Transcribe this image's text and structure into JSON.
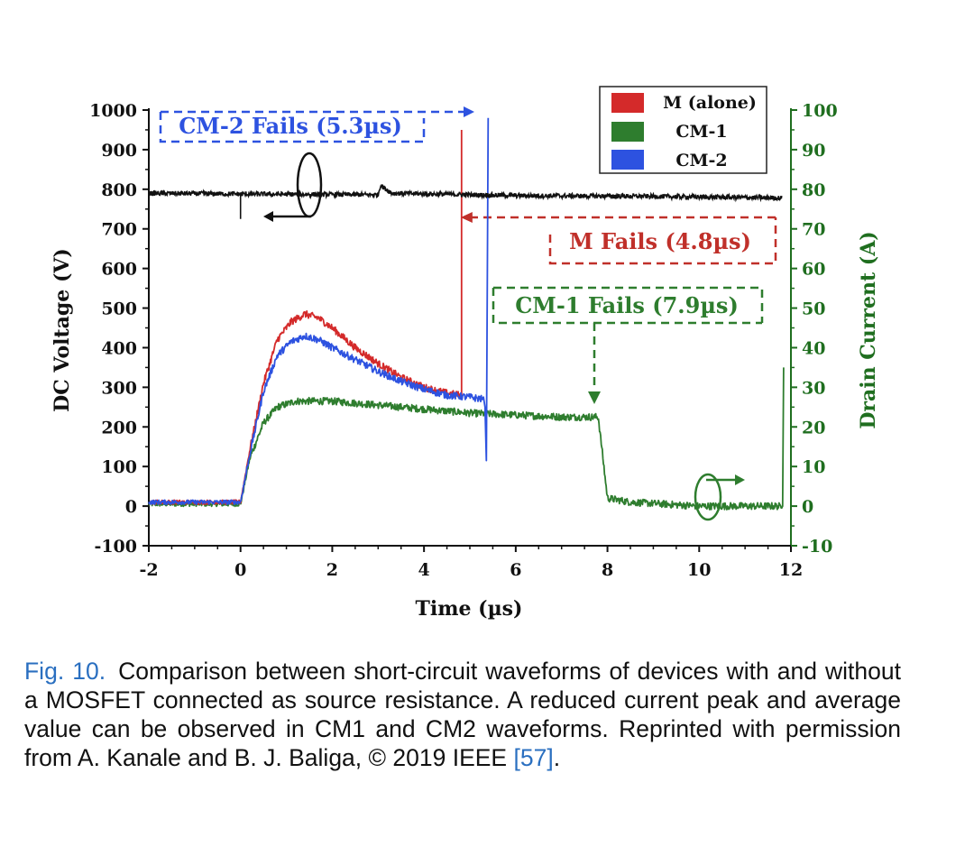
{
  "chart_data": {
    "type": "line",
    "xlabel": "Time (µs)",
    "ylabel_left": "DC Voltage (V)",
    "ylabel_right": "Drain Current (A)",
    "xlim": [
      -2,
      12
    ],
    "ylim_left": [
      -100,
      1000
    ],
    "ylim_right": [
      -10,
      100
    ],
    "x_ticks": [
      "-2",
      "0",
      "2",
      "4",
      "6",
      "8",
      "10",
      "12"
    ],
    "y_ticks_left": [
      "1000",
      "900",
      "800",
      "700",
      "600",
      "500",
      "400",
      "300",
      "200",
      "100",
      "0",
      "-100"
    ],
    "y_ticks_right": [
      "100",
      "90",
      "80",
      "70",
      "60",
      "50",
      "40",
      "30",
      "20",
      "10",
      "0",
      "-10"
    ],
    "legend": {
      "placement": "top-right",
      "entries": [
        {
          "name": "M (alone)",
          "color": "#d42a2a"
        },
        {
          "name": "CM-1",
          "color": "#2e7d2e"
        },
        {
          "name": "CM-2",
          "color": "#2d52e0"
        }
      ]
    },
    "voltage_series": {
      "color": "#111111",
      "axis": "left",
      "points": [
        [
          -2,
          790
        ],
        [
          0,
          788
        ],
        [
          3,
          786
        ],
        [
          3.05,
          810
        ],
        [
          3.3,
          790
        ],
        [
          6,
          784
        ],
        [
          9,
          782
        ],
        [
          11.8,
          778
        ]
      ]
    },
    "series": [
      {
        "name": "M (alone)",
        "axis": "right",
        "color": "#d42a2a",
        "x": [
          -2,
          0,
          0.2,
          0.5,
          0.8,
          1.1,
          1.4,
          1.7,
          2.0,
          2.5,
          3.0,
          3.5,
          4.0,
          4.5,
          4.8
        ],
        "y": [
          1,
          1,
          14,
          31,
          42,
          46.5,
          48.5,
          47.5,
          45,
          40,
          36,
          32.5,
          30,
          28.5,
          28
        ]
      },
      {
        "name": "CM-1",
        "axis": "right",
        "color": "#2e7d2e",
        "x": [
          -2,
          0,
          0.2,
          0.5,
          0.8,
          1.2,
          2.0,
          3.0,
          4.0,
          5.0,
          6.0,
          7.0,
          7.8,
          8.0,
          8.5,
          10.0,
          11.8
        ],
        "y": [
          0.5,
          0.5,
          12,
          21,
          25,
          26.5,
          26.5,
          25.5,
          24.5,
          23.5,
          23,
          22.5,
          22.5,
          2,
          1,
          0,
          0
        ]
      },
      {
        "name": "CM-2",
        "axis": "right",
        "color": "#2d52e0",
        "x": [
          -2,
          0,
          0.2,
          0.5,
          0.8,
          1.1,
          1.4,
          1.7,
          2.0,
          2.5,
          3.0,
          3.5,
          4.0,
          4.5,
          5.0,
          5.3
        ],
        "y": [
          1,
          1,
          13,
          29,
          38,
          41.5,
          43,
          42,
          40,
          37,
          34,
          31.5,
          29.5,
          28,
          27.5,
          27
        ]
      }
    ],
    "annotations": [
      {
        "text": "CM-2 Fails (5.3µs)",
        "color": "#2d52e0",
        "x": 5.3
      },
      {
        "text": "M Fails (4.8µs)",
        "color": "#c0302a",
        "x": 4.8
      },
      {
        "text": "CM-1 Fails (7.9µs)",
        "color": "#2e7d2e",
        "x": 7.9
      }
    ]
  },
  "caption": {
    "label": "Fig. 10.",
    "text": "Comparison between short-circuit waveforms of devices with and without a MOSFET connected as source resistance. A reduced current peak and average value can be observed in CM1 and CM2 waveforms. Reprinted with permission from A. Kanale and B. J. Baliga, © 2019 IEEE ",
    "ref": "[57]",
    "end": "."
  }
}
